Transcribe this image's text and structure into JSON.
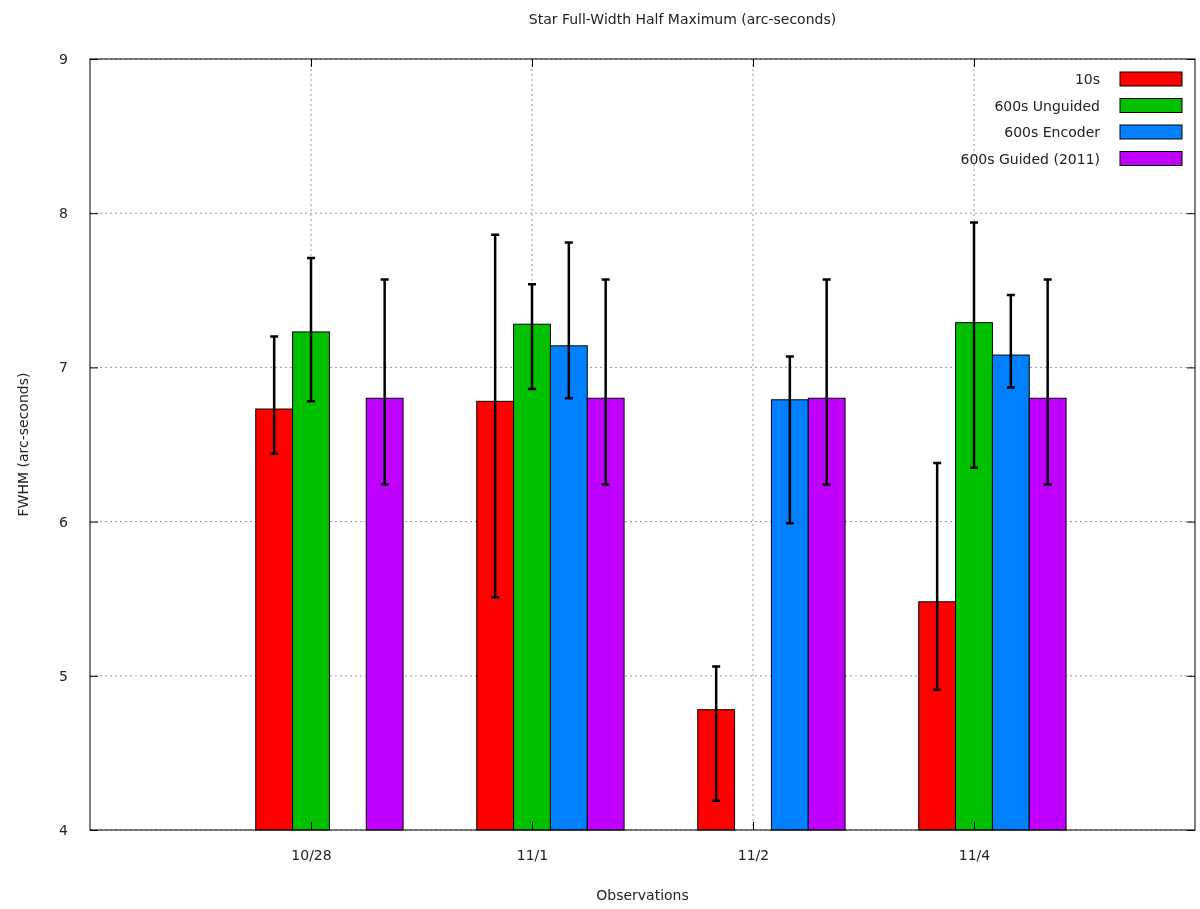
{
  "chart_data": {
    "type": "bar",
    "title": "Star Full-Width Half Maximum (arc-seconds)",
    "xlabel": "Observations",
    "ylabel": "FWHM (arc-seconds)",
    "categories": [
      "10/28",
      "11/1",
      "11/2",
      "11/4"
    ],
    "series": [
      {
        "name": "10s",
        "color": "#ff0000",
        "values": [
          6.73,
          6.78,
          4.78,
          5.48
        ],
        "errors": [
          [
            6.44,
            7.2
          ],
          [
            5.51,
            7.86
          ],
          [
            4.19,
            5.06
          ],
          [
            4.91,
            6.38
          ]
        ]
      },
      {
        "name": "600s Unguided",
        "color": "#00c000",
        "values": [
          7.23,
          7.28,
          null,
          7.29
        ],
        "errors": [
          [
            6.78,
            7.71
          ],
          [
            6.86,
            7.54
          ],
          null,
          [
            6.35,
            7.94
          ]
        ]
      },
      {
        "name": "600s Encoder",
        "color": "#0080ff",
        "values": [
          null,
          7.14,
          6.79,
          7.08
        ],
        "errors": [
          null,
          [
            6.8,
            7.81
          ],
          [
            5.99,
            7.07
          ],
          [
            6.87,
            7.47
          ]
        ]
      },
      {
        "name": "600s Guided (2011)",
        "color": "#c000ff",
        "values": [
          6.8,
          6.8,
          6.8,
          6.8
        ],
        "errors": [
          [
            6.24,
            7.57
          ],
          [
            6.24,
            7.57
          ],
          [
            6.24,
            7.57
          ],
          [
            6.24,
            7.57
          ]
        ]
      }
    ],
    "ylim": [
      4,
      9
    ],
    "yticks": [
      4,
      5,
      6,
      7,
      8,
      9
    ],
    "grid": true,
    "legend": "top right"
  }
}
